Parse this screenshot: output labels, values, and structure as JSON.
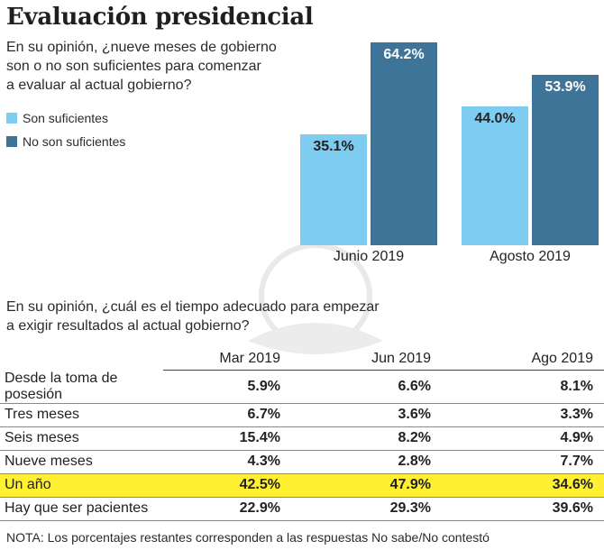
{
  "title": "Evaluación presidencial",
  "question1": {
    "line1": "En su opinión, ¿nueve meses de gobierno",
    "line2": "son o no son suficientes para comenzar",
    "line3": "a evaluar al actual gobierno?"
  },
  "legend": [
    "Son suficientes",
    "No son suficientes"
  ],
  "colors": {
    "light": "#7ecdf1",
    "dark": "#3d7498",
    "highlight": "#fff032"
  },
  "chart_data": {
    "type": "bar",
    "categories": [
      "Junio 2019",
      "Agosto 2019"
    ],
    "series": [
      {
        "name": "Son suficientes",
        "values": [
          35.1,
          44.0
        ],
        "labels": [
          "35.1%",
          "44.0%"
        ]
      },
      {
        "name": "No son suficientes",
        "values": [
          64.2,
          53.9
        ],
        "labels": [
          "64.2%",
          "53.9%"
        ]
      }
    ],
    "ylim": [
      0,
      70
    ],
    "grid": false,
    "legend_position": "left"
  },
  "question2": {
    "line1": "En su opinión, ¿cuál es el tiempo adecuado para empezar",
    "line2": "a exigir resultados al actual gobierno?"
  },
  "table": {
    "columns": [
      "Mar 2019",
      "Jun 2019",
      "Ago 2019"
    ],
    "rows": [
      {
        "label": "Desde la toma de posesión",
        "values": [
          "5.9%",
          "6.6%",
          "8.1%"
        ]
      },
      {
        "label": "Tres meses",
        "values": [
          "6.7%",
          "3.6%",
          "3.3%"
        ]
      },
      {
        "label": "Seis meses",
        "values": [
          "15.4%",
          "8.2%",
          "4.9%"
        ]
      },
      {
        "label": "Nueve meses",
        "values": [
          "4.3%",
          "2.8%",
          "7.7%"
        ]
      },
      {
        "label": "Un año",
        "values": [
          "42.5%",
          "47.9%",
          "34.6%"
        ],
        "highlight": true
      },
      {
        "label": "Hay que ser pacientes",
        "values": [
          "22.9%",
          "29.3%",
          "39.6%"
        ]
      }
    ]
  },
  "note": "NOTA: Los porcentajes restantes corresponden a las respuestas No sabe/No contestó"
}
